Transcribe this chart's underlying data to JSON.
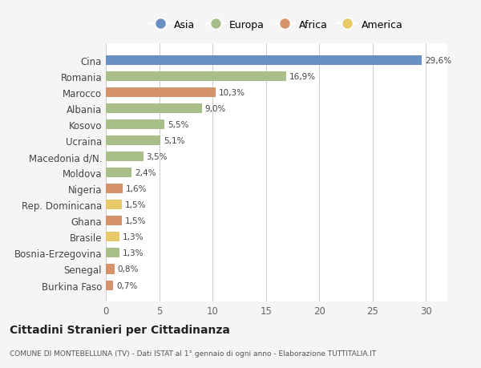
{
  "countries": [
    "Cina",
    "Romania",
    "Marocco",
    "Albania",
    "Kosovo",
    "Ucraina",
    "Macedonia d/N.",
    "Moldova",
    "Nigeria",
    "Rep. Dominicana",
    "Ghana",
    "Brasile",
    "Bosnia-Erzegovina",
    "Senegal",
    "Burkina Faso"
  ],
  "values": [
    29.6,
    16.9,
    10.3,
    9.0,
    5.5,
    5.1,
    3.5,
    2.4,
    1.6,
    1.5,
    1.5,
    1.3,
    1.3,
    0.8,
    0.7
  ],
  "labels": [
    "29,6%",
    "16,9%",
    "10,3%",
    "9,0%",
    "5,5%",
    "5,1%",
    "3,5%",
    "2,4%",
    "1,6%",
    "1,5%",
    "1,5%",
    "1,3%",
    "1,3%",
    "0,8%",
    "0,7%"
  ],
  "continents": [
    "Asia",
    "Europa",
    "Africa",
    "Europa",
    "Europa",
    "Europa",
    "Europa",
    "Europa",
    "Africa",
    "America",
    "Africa",
    "America",
    "Europa",
    "Africa",
    "Africa"
  ],
  "colors": {
    "Asia": "#6a8fc2",
    "Europa": "#a8bf8a",
    "Africa": "#d4936a",
    "America": "#e8c96a"
  },
  "legend_order": [
    "Asia",
    "Europa",
    "Africa",
    "America"
  ],
  "xlim": [
    0,
    32
  ],
  "xticks": [
    0,
    5,
    10,
    15,
    20,
    25,
    30
  ],
  "title": "Cittadini Stranieri per Cittadinanza",
  "subtitle": "COMUNE DI MONTEBELLUNA (TV) - Dati ISTAT al 1° gennaio di ogni anno - Elaborazione TUTTITALIA.IT",
  "bg_color": "#f5f5f5",
  "bar_bg_color": "#ffffff",
  "grid_color": "#cccccc"
}
